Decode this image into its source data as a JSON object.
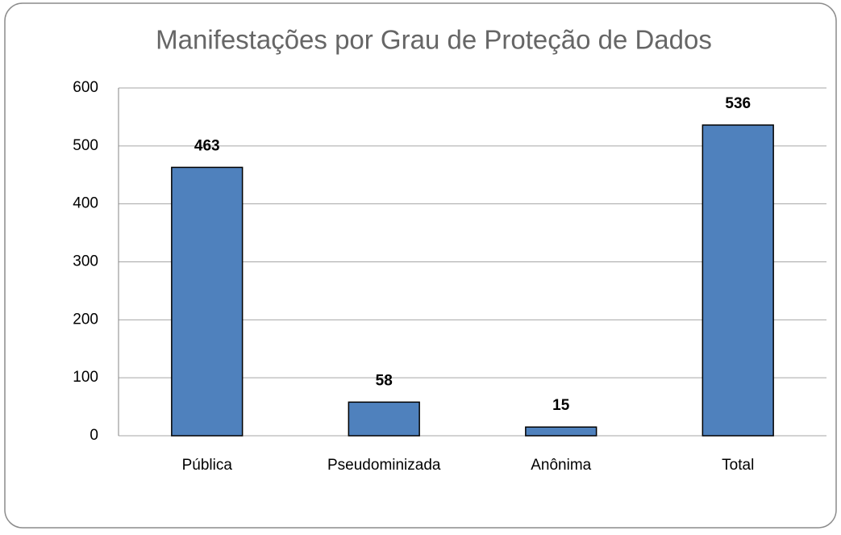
{
  "chart_data": {
    "type": "bar",
    "title": "Manifestações por Grau de Proteção de Dados",
    "categories": [
      "Pública",
      "Pseudominizada",
      "Anônima",
      "Total"
    ],
    "values": [
      463,
      58,
      15,
      536
    ],
    "color": "#4f81bd",
    "ylim": [
      0,
      600
    ],
    "yticks": [
      0,
      100,
      200,
      300,
      400,
      500,
      600
    ],
    "grid": true
  }
}
